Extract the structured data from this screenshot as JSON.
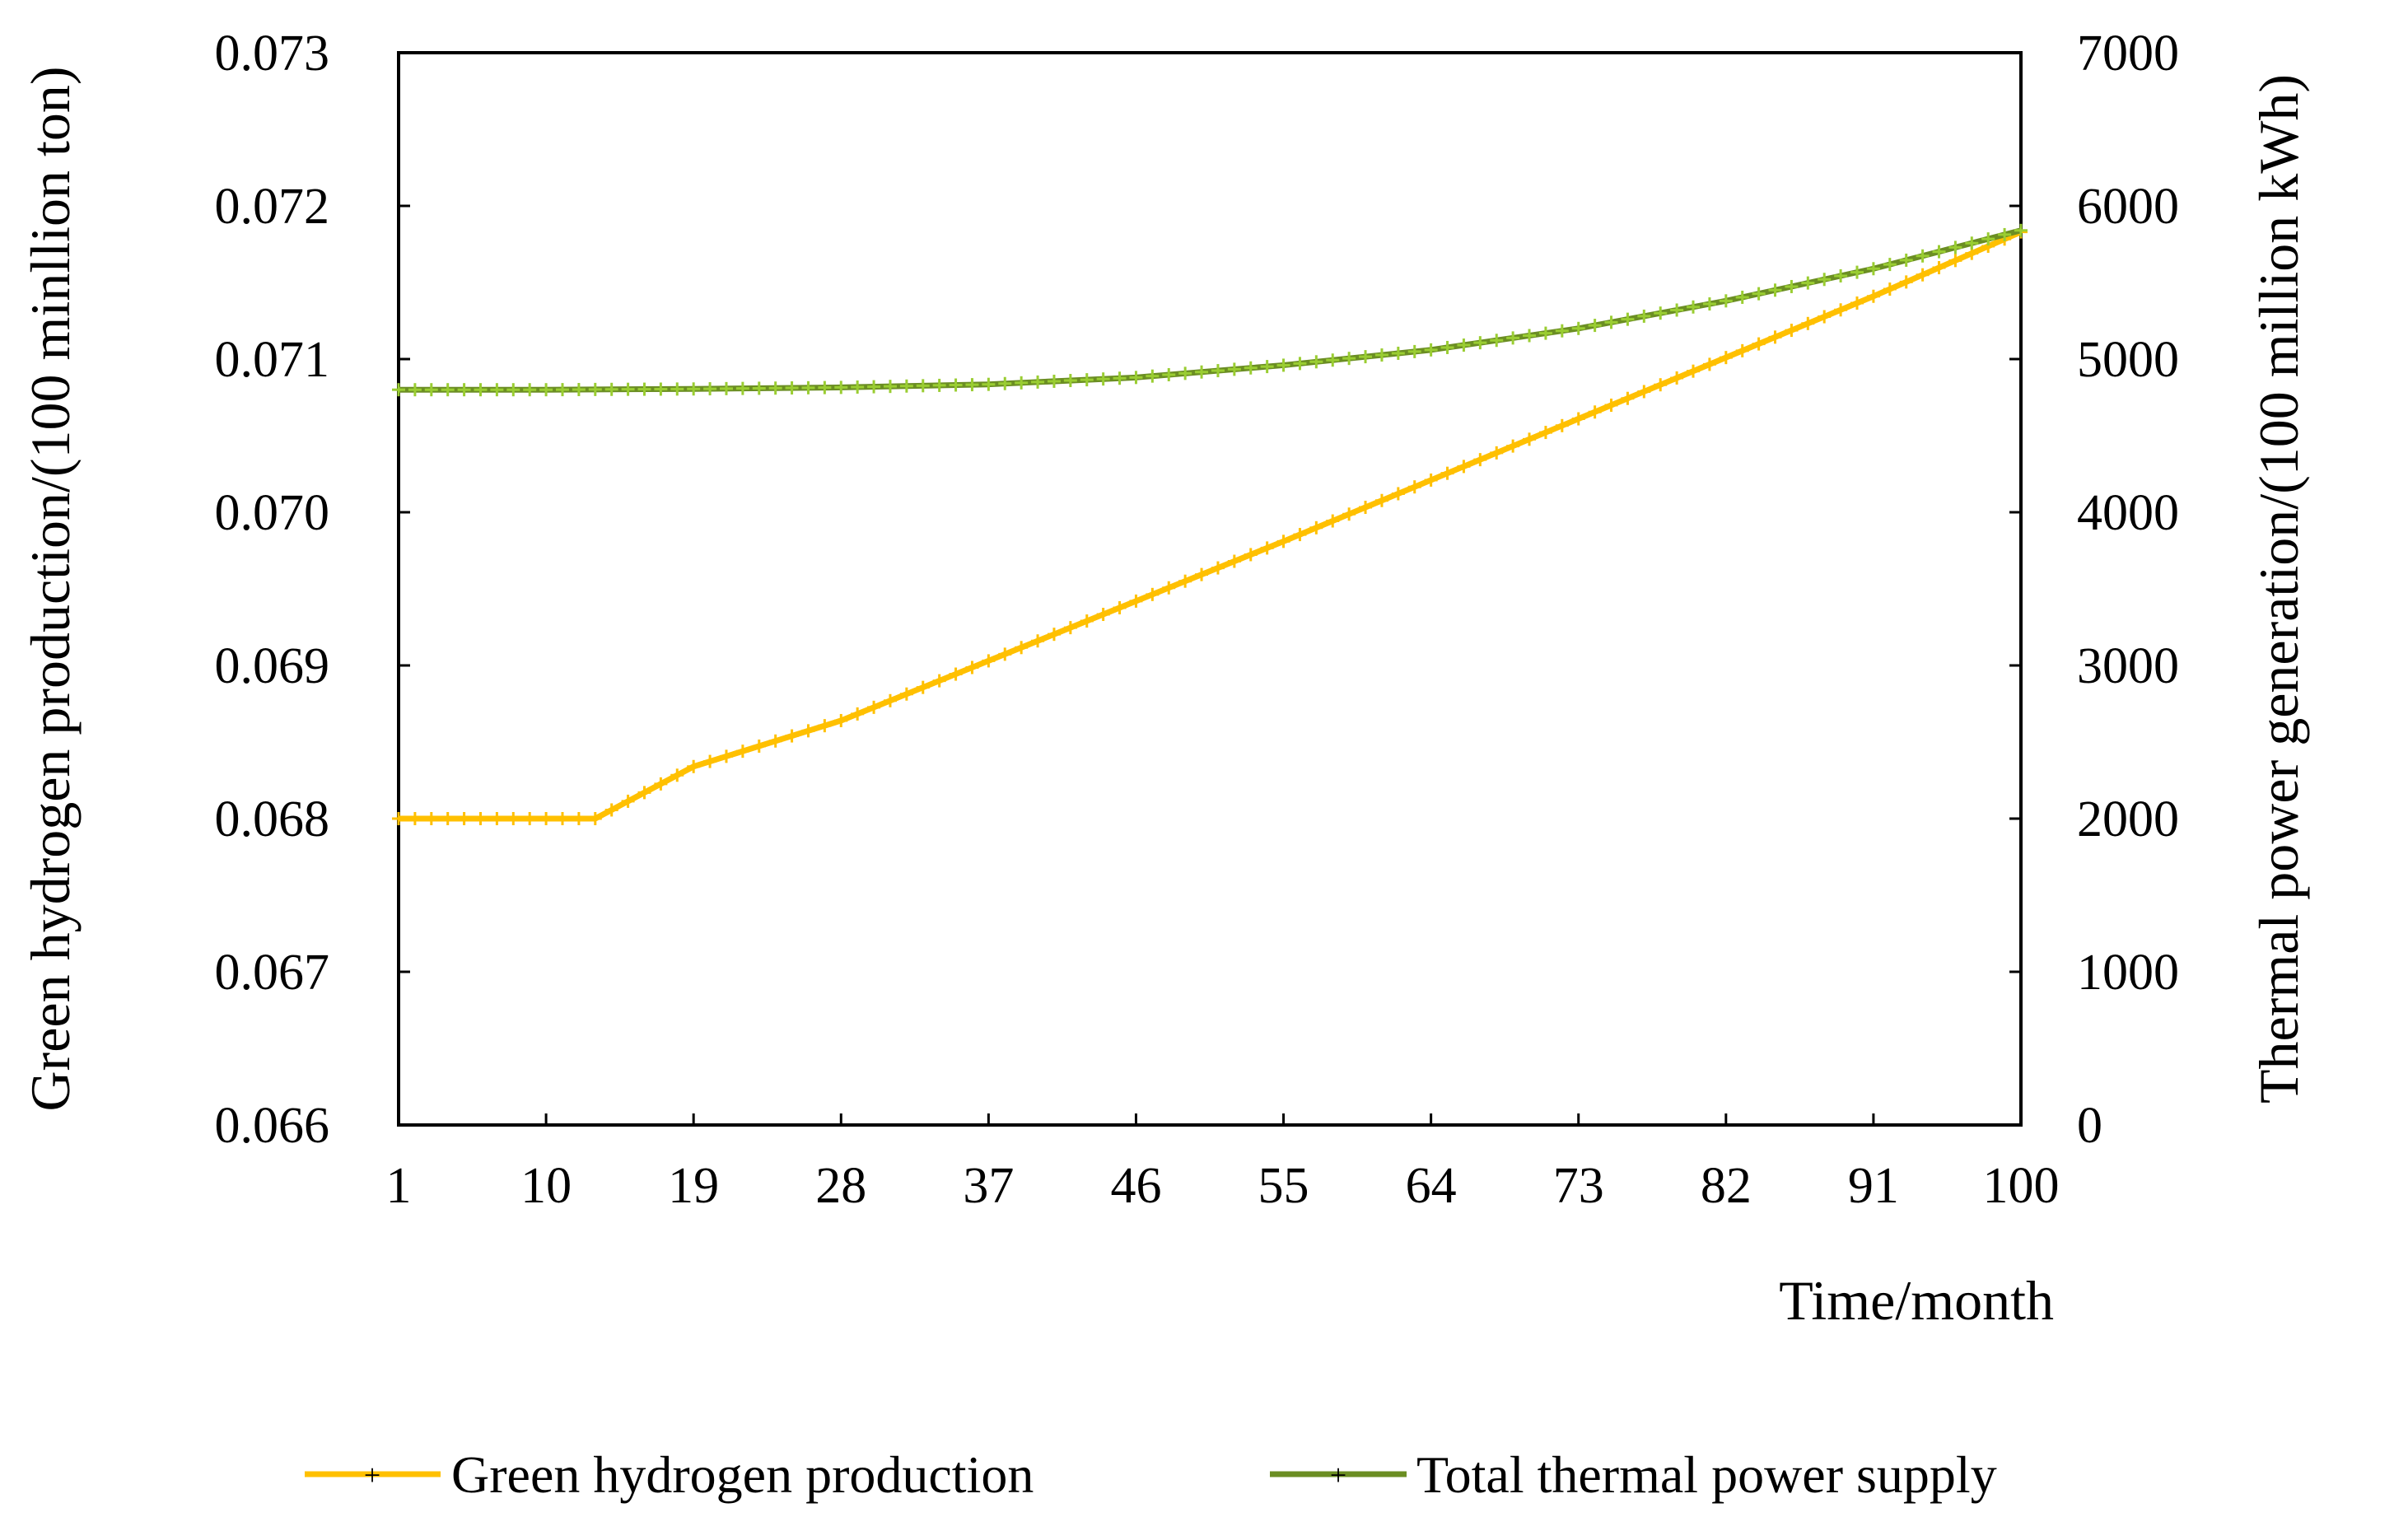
{
  "chart_data": {
    "type": "line",
    "title": "",
    "xlabel": "Time/month",
    "ylabel_left": "Green hydrogen production/(100 minllion ton)",
    "ylabel_right": "Thermal power generation/(100 million kWh)",
    "xlim": [
      1,
      100
    ],
    "ylim_left": [
      0.066,
      0.073
    ],
    "ylim_right": [
      0,
      7000
    ],
    "x_ticks": [
      1,
      10,
      19,
      28,
      37,
      46,
      55,
      64,
      73,
      82,
      91,
      100
    ],
    "y_left_ticks": [
      "0.066",
      "0.067",
      "0.068",
      "0.069",
      "0.070",
      "0.071",
      "0.072",
      "0.073"
    ],
    "y_right_ticks": [
      "0",
      "1000",
      "2000",
      "3000",
      "4000",
      "5000",
      "6000",
      "7000"
    ],
    "grid": false,
    "legend_position": "bottom",
    "series": [
      {
        "name": "Green hydrogen production",
        "axis": "left",
        "color": "#FFC000",
        "marker": "+",
        "x": [
          1,
          13,
          19,
          28,
          37,
          46,
          55,
          64,
          73,
          82,
          91,
          100
        ],
        "values": [
          0.068,
          0.068,
          0.06834,
          0.06864,
          0.06903,
          0.06942,
          0.06981,
          0.07021,
          0.07061,
          0.07101,
          0.07141,
          0.07183
        ]
      },
      {
        "name": "Total thermal power supply",
        "axis": "right",
        "color": "#70AD47",
        "line_color": "#6B8E23",
        "marker_color": "#9ACD32",
        "marker": "+",
        "x": [
          1,
          10,
          19,
          28,
          37,
          46,
          55,
          64,
          73,
          82,
          91,
          100
        ],
        "values": [
          4800,
          4800,
          4805,
          4815,
          4835,
          4880,
          4960,
          5060,
          5200,
          5380,
          5590,
          5840
        ]
      }
    ]
  }
}
